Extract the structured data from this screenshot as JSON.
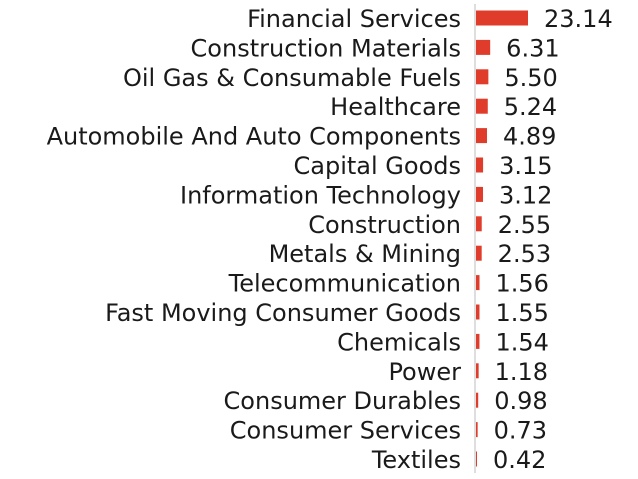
{
  "chart_data": {
    "type": "bar",
    "orientation": "horizontal",
    "title": "",
    "xlabel": "",
    "ylabel": "",
    "categories": [
      "Financial Services",
      "Construction Materials",
      "Oil Gas & Consumable Fuels",
      "Healthcare",
      "Automobile And Auto Components",
      "Capital Goods",
      "Information Technology",
      "Construction",
      "Metals & Mining",
      "Telecommunication",
      "Fast Moving Consumer Goods",
      "Chemicals",
      "Power",
      "Consumer Durables",
      "Consumer Services",
      "Textiles"
    ],
    "values": [
      23.14,
      6.31,
      5.5,
      5.24,
      4.89,
      3.15,
      3.12,
      2.55,
      2.53,
      1.56,
      1.55,
      1.54,
      1.18,
      0.98,
      0.73,
      0.42
    ],
    "value_labels": [
      "23.14",
      "6.31",
      "5.50",
      "5.24",
      "4.89",
      "3.15",
      "3.12",
      "2.55",
      "2.53",
      "1.56",
      "1.55",
      "1.54",
      "1.18",
      "0.98",
      "0.73",
      "0.42"
    ],
    "xlim": [
      0,
      23.14
    ],
    "grid": false,
    "legend": "none",
    "bar_color": "#e03c2b",
    "axis_color": "#bdbdbd"
  }
}
